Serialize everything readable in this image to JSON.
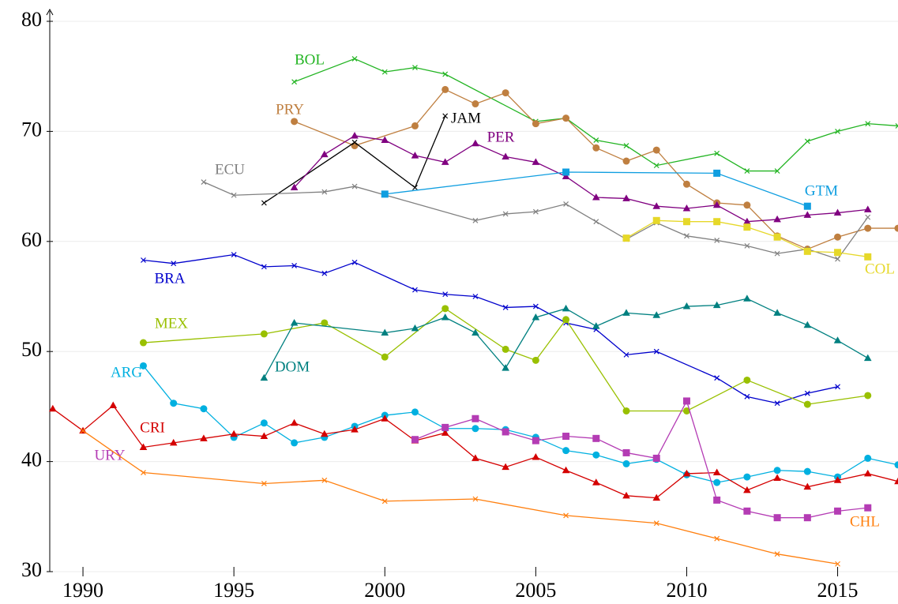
{
  "chart_data": {
    "type": "line",
    "xlim": [
      1988.9,
      2017
    ],
    "xticks": [
      1990,
      1995,
      2000,
      2005,
      2010,
      2015
    ],
    "ylim": [
      30,
      80
    ],
    "yticks": [
      30,
      40,
      50,
      60,
      70,
      80
    ],
    "grid": true,
    "series": [
      {
        "name": "BOL",
        "color": "#22b422",
        "marker": "x",
        "x": [
          1997,
          1999,
          2000,
          2001,
          2002,
          2005,
          2006,
          2007,
          2008,
          2009,
          2011,
          2012,
          2013,
          2014,
          2015,
          2016,
          2017
        ],
        "values": [
          74.5,
          76.6,
          75.4,
          75.8,
          75.2,
          70.9,
          71.2,
          69.2,
          68.7,
          66.9,
          68.0,
          66.4,
          66.4,
          69.1,
          70.0,
          70.7,
          70.5
        ]
      },
      {
        "name": "PRY",
        "color": "#bf7f40",
        "marker": "circle",
        "x": [
          1997,
          1999,
          2001,
          2002,
          2003,
          2004,
          2005,
          2006,
          2007,
          2008,
          2009,
          2010,
          2011,
          2012,
          2013,
          2014,
          2015,
          2016,
          2017
        ],
        "values": [
          70.9,
          68.7,
          70.5,
          73.8,
          72.5,
          73.5,
          70.7,
          71.2,
          68.5,
          67.3,
          68.3,
          65.2,
          63.5,
          63.3,
          60.5,
          59.3,
          60.4,
          61.2,
          61.2
        ]
      },
      {
        "name": "JAM",
        "color": "#000000",
        "marker": "x",
        "x": [
          1996,
          1999,
          2001,
          2002
        ],
        "values": [
          63.5,
          69.0,
          64.9,
          71.4
        ]
      },
      {
        "name": "PER",
        "color": "#800080",
        "marker": "triangle",
        "x": [
          1997,
          1998,
          1999,
          2000,
          2001,
          2002,
          2003,
          2004,
          2005,
          2006,
          2007,
          2008,
          2009,
          2010,
          2011,
          2012,
          2013,
          2014,
          2015,
          2016
        ],
        "values": [
          64.9,
          67.9,
          69.6,
          69.2,
          67.8,
          67.2,
          68.9,
          67.7,
          67.2,
          65.9,
          64.0,
          63.9,
          63.2,
          63.0,
          63.3,
          61.8,
          62.0,
          62.4,
          62.6,
          62.9
        ]
      },
      {
        "name": "ECU",
        "color": "#808080",
        "marker": "x",
        "x": [
          1994,
          1995,
          1998,
          1999,
          2003,
          2004,
          2005,
          2006,
          2007,
          2008,
          2009,
          2010,
          2011,
          2012,
          2013,
          2014,
          2015,
          2016
        ],
        "values": [
          65.4,
          64.2,
          64.5,
          65.0,
          61.9,
          62.5,
          62.7,
          63.4,
          61.8,
          60.2,
          61.7,
          60.5,
          60.1,
          59.6,
          58.9,
          59.3,
          58.4,
          62.2
        ]
      },
      {
        "name": "GTM",
        "color": "#0f9ee0",
        "marker": "square",
        "x": [
          2000,
          2006,
          2011,
          2014
        ],
        "values": [
          64.3,
          66.3,
          66.2,
          63.2
        ]
      },
      {
        "name": "COL",
        "color": "#e6d829",
        "marker": "square",
        "x": [
          2008,
          2009,
          2010,
          2011,
          2012,
          2013,
          2014,
          2015,
          2016
        ],
        "values": [
          60.3,
          61.9,
          61.8,
          61.8,
          61.3,
          60.4,
          59.1,
          59.0,
          58.6
        ]
      },
      {
        "name": "BRA",
        "color": "#0000cc",
        "marker": "x",
        "x": [
          1992,
          1993,
          1995,
          1996,
          1997,
          1998,
          1999,
          2001,
          2002,
          2003,
          2004,
          2005,
          2006,
          2007,
          2008,
          2009,
          2011,
          2012,
          2013,
          2014,
          2015
        ],
        "values": [
          58.3,
          58.0,
          58.8,
          57.7,
          57.8,
          57.1,
          58.1,
          55.6,
          55.2,
          55.0,
          54.0,
          54.1,
          52.6,
          52.0,
          49.7,
          50.0,
          47.6,
          45.9,
          45.3,
          46.2,
          46.8
        ]
      },
      {
        "name": "MEX",
        "color": "#99c000",
        "marker": "circle",
        "x": [
          1992,
          1996,
          1998,
          2000,
          2002,
          2004,
          2005,
          2006,
          2008,
          2010,
          2012,
          2014,
          2016
        ],
        "values": [
          50.8,
          51.6,
          52.6,
          49.5,
          53.9,
          50.2,
          49.2,
          52.9,
          44.6,
          44.6,
          47.4,
          45.2,
          46.0
        ]
      },
      {
        "name": "DOM",
        "color": "#008080",
        "marker": "triangle",
        "x": [
          1996,
          1997,
          2000,
          2001,
          2002,
          2003,
          2004,
          2005,
          2006,
          2007,
          2008,
          2009,
          2010,
          2011,
          2012,
          2013,
          2014,
          2015,
          2016
        ],
        "values": [
          47.6,
          52.6,
          51.7,
          52.1,
          53.1,
          51.7,
          48.5,
          53.1,
          53.9,
          52.3,
          53.5,
          53.3,
          54.1,
          54.2,
          54.8,
          53.5,
          52.4,
          51.0,
          49.4
        ]
      },
      {
        "name": "ARG",
        "color": "#00b0e0",
        "marker": "circle",
        "x": [
          1992,
          1993,
          1994,
          1995,
          1996,
          1997,
          1998,
          1999,
          2000,
          2001,
          2002,
          2003,
          2004,
          2005,
          2006,
          2007,
          2008,
          2009,
          2010,
          2011,
          2012,
          2013,
          2014,
          2015,
          2016,
          2017
        ],
        "values": [
          48.7,
          45.3,
          44.8,
          42.2,
          43.5,
          41.7,
          42.2,
          43.2,
          44.2,
          44.5,
          43.0,
          43.0,
          42.9,
          42.2,
          41.0,
          40.6,
          39.8,
          40.2,
          38.8,
          38.1,
          38.6,
          39.2,
          39.1,
          38.6,
          40.3,
          39.7
        ]
      },
      {
        "name": "CRI",
        "color": "#d40000",
        "marker": "triangle",
        "x": [
          1989,
          1990,
          1991,
          1992,
          1993,
          1994,
          1995,
          1996,
          1997,
          1998,
          1999,
          2000,
          2001,
          2002,
          2003,
          2004,
          2005,
          2006,
          2007,
          2008,
          2009,
          2010,
          2011,
          2012,
          2013,
          2014,
          2015,
          2016,
          2017
        ],
        "values": [
          44.8,
          42.8,
          45.1,
          41.3,
          41.7,
          42.1,
          42.5,
          42.3,
          43.5,
          42.5,
          42.9,
          43.9,
          41.9,
          42.6,
          40.3,
          39.5,
          40.4,
          39.2,
          38.1,
          36.9,
          36.7,
          38.9,
          39.0,
          37.4,
          38.5,
          37.7,
          38.3,
          38.9,
          38.2
        ]
      },
      {
        "name": "URY",
        "color": "#b43cb4",
        "marker": "square",
        "x": [
          2001,
          2002,
          2003,
          2004,
          2005,
          2006,
          2007,
          2008,
          2009,
          2010,
          2011,
          2012,
          2013,
          2014,
          2015,
          2016
        ],
        "values": [
          42.0,
          43.1,
          43.9,
          42.7,
          41.9,
          42.3,
          42.1,
          40.8,
          40.3,
          45.5,
          36.5,
          35.5,
          34.9,
          34.9,
          35.5,
          35.8
        ]
      },
      {
        "name": "CHL",
        "color": "#ff7f0e",
        "marker": "x",
        "x": [
          1990,
          1992,
          1996,
          1998,
          2000,
          2003,
          2006,
          2009,
          2011,
          2013,
          2015
        ],
        "values": [
          42.8,
          39.0,
          38.0,
          38.3,
          36.4,
          36.6,
          35.1,
          34.4,
          33.0,
          31.6,
          30.7
        ]
      }
    ]
  }
}
